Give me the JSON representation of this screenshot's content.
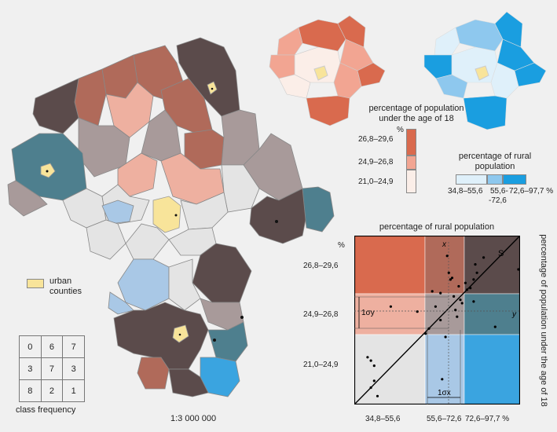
{
  "colors": {
    "background": "#f0f0f0",
    "rural_low_youth_high": "#d96a4e",
    "both_high": "#5b4b4b",
    "mid_high": "#b06a5a",
    "youth_mid_low_rural": "#eeb0a0",
    "youth_mid_mid_rural": "#a89a9a",
    "youth_mid_high_rural": "#4e7f8e",
    "low_low": "#e4e4e4",
    "low_youth_mid_rural": "#a9c8e6",
    "low_youth_high_rural": "#3aa4e0",
    "urban": "#f8e49a",
    "youth_scale": [
      "#fbeee8",
      "#f2a592",
      "#d96a4e"
    ],
    "rural_scale": [
      "#dff0fa",
      "#8ec8ee",
      "#1a9ee0"
    ]
  },
  "urban_legend": {
    "label_line1": "urban",
    "label_line2": "counties"
  },
  "class_frequency": {
    "title": "class frequency",
    "grid": [
      [
        "0",
        "6",
        "7"
      ],
      [
        "3",
        "7",
        "3"
      ],
      [
        "8",
        "2",
        "1"
      ]
    ]
  },
  "scale": "1:3 000 000",
  "youth_legend": {
    "title_line1": "percentage of population",
    "title_line2": "under the age of 18",
    "unit": "%",
    "classes": [
      "26,8–29,6",
      "24,9–26,8",
      "21,0–24,9"
    ]
  },
  "rural_legend": {
    "title_line1": "percentage of rural",
    "title_line2": "population",
    "classes": [
      "34,8–55,6",
      "55,6-\n-72,6",
      "72,6–97,7 %"
    ],
    "classes_line_a": [
      "34,8–55,6",
      "55,6-",
      "72,6–97,7 %"
    ],
    "class_mid_line_b": "-72,6"
  },
  "chart_data": {
    "type": "scatter",
    "title": "percentage of rural population",
    "xlabel": "percentage of rural population",
    "ylabel": "percentage of population under the age of 18",
    "y_unit": "%",
    "x_classes": [
      "34,8–55,6",
      "55,6–72,6",
      "72,6–97,7 %"
    ],
    "y_classes": [
      "26,8–29,6",
      "24,9–26,8",
      "21,0–24,9"
    ],
    "annotations": {
      "x_mean": "x",
      "y_mean": "y",
      "regression": "S",
      "sigma_y": "1σy",
      "sigma_x": "1σx"
    },
    "points": [
      {
        "x": 0.08,
        "y": 0.28
      },
      {
        "x": 0.1,
        "y": 0.26
      },
      {
        "x": 0.12,
        "y": 0.23
      },
      {
        "x": 0.12,
        "y": 0.14
      },
      {
        "x": 0.14,
        "y": 0.05
      },
      {
        "x": 0.1,
        "y": 0.1
      },
      {
        "x": 0.22,
        "y": 0.58
      },
      {
        "x": 0.38,
        "y": 0.55
      },
      {
        "x": 0.43,
        "y": 0.42
      },
      {
        "x": 0.45,
        "y": 0.45
      },
      {
        "x": 0.47,
        "y": 0.67
      },
      {
        "x": 0.49,
        "y": 0.58
      },
      {
        "x": 0.52,
        "y": 0.66
      },
      {
        "x": 0.53,
        "y": 0.15
      },
      {
        "x": 0.55,
        "y": 0.4
      },
      {
        "x": 0.56,
        "y": 0.88
      },
      {
        "x": 0.57,
        "y": 0.78
      },
      {
        "x": 0.58,
        "y": 0.74
      },
      {
        "x": 0.59,
        "y": 0.75
      },
      {
        "x": 0.6,
        "y": 0.64
      },
      {
        "x": 0.61,
        "y": 0.56
      },
      {
        "x": 0.62,
        "y": 0.52
      },
      {
        "x": 0.63,
        "y": 0.7
      },
      {
        "x": 0.64,
        "y": 0.62
      },
      {
        "x": 0.65,
        "y": 0.6
      },
      {
        "x": 0.67,
        "y": 0.72
      },
      {
        "x": 0.68,
        "y": 0.68
      },
      {
        "x": 0.7,
        "y": 0.69
      },
      {
        "x": 0.72,
        "y": 0.74
      },
      {
        "x": 0.73,
        "y": 0.83
      },
      {
        "x": 0.74,
        "y": 0.78
      },
      {
        "x": 0.78,
        "y": 0.87
      },
      {
        "x": 0.72,
        "y": 0.61
      },
      {
        "x": 0.85,
        "y": 0.46
      },
      {
        "x": 0.99,
        "y": 0.8
      },
      {
        "x": 0.52,
        "y": 0.5
      }
    ]
  }
}
